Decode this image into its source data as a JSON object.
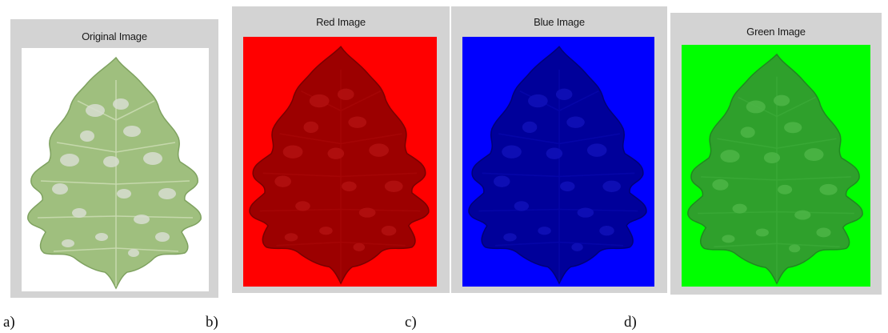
{
  "panels": [
    {
      "title": "Original Image",
      "background": "#ffffff",
      "leaf_fill": "#9fbf7e",
      "leaf_shade": "#7fa260",
      "spot_fill": "#d7ddd0",
      "vein": "#c9dab0"
    },
    {
      "title": "Red Image",
      "background": "#ff0000",
      "leaf_fill": "#9c0000",
      "leaf_shade": "#7a0000",
      "spot_fill": "#b31010",
      "vein": "#a50505"
    },
    {
      "title": "Blue Image",
      "background": "#0000ff",
      "leaf_fill": "#00009a",
      "leaf_shade": "#000078",
      "spot_fill": "#1010b8",
      "vein": "#0505a8"
    },
    {
      "title": "Green Image",
      "background": "#00ff00",
      "leaf_fill": "#2fa02c",
      "leaf_shade": "#1f8a1f",
      "spot_fill": "#4cb547",
      "vein": "#3aa836"
    }
  ],
  "captions": [
    "a)",
    "b)",
    "c)",
    "d)"
  ]
}
